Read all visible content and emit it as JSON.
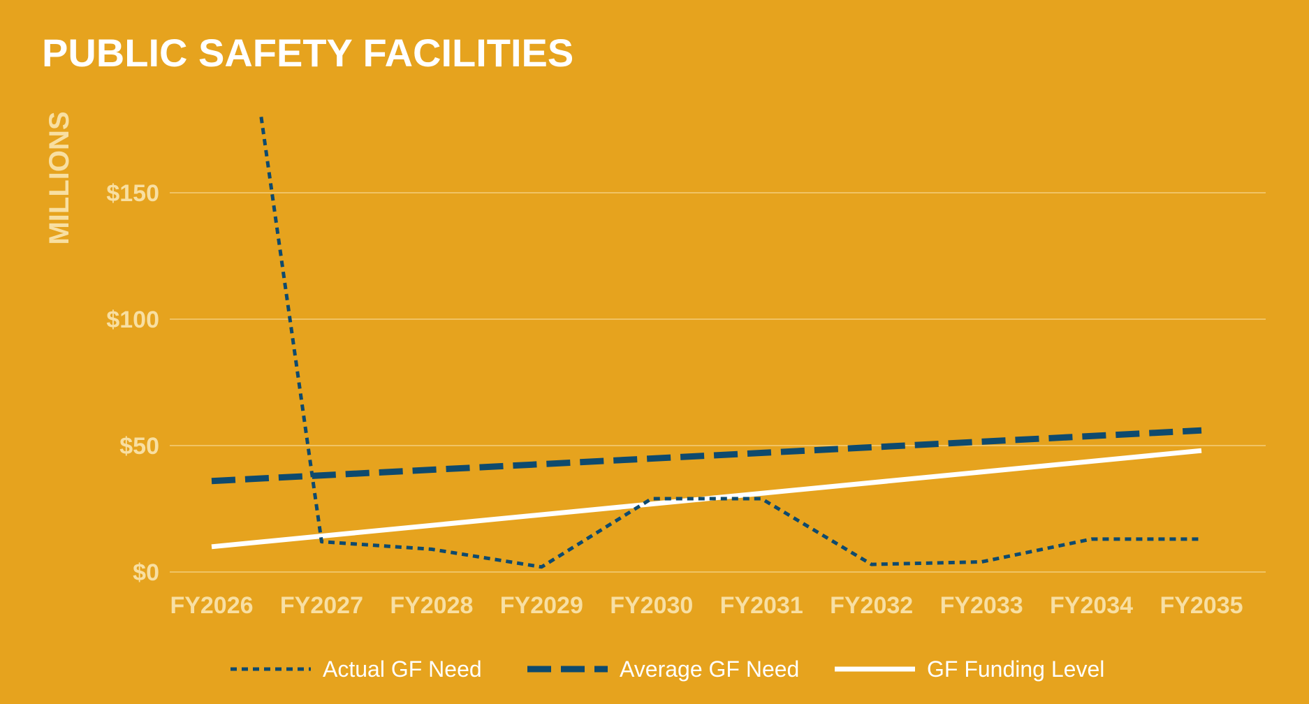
{
  "chart_data": {
    "type": "line",
    "title": "PUBLIC SAFETY FACILITIES",
    "ylabel": "MILLIONS",
    "xlabel": "",
    "categories": [
      "FY2026",
      "FY2027",
      "FY2028",
      "FY2029",
      "FY2030",
      "FY2031",
      "FY2032",
      "FY2033",
      "FY2034",
      "FY2035"
    ],
    "ylim": [
      0,
      180
    ],
    "yticks": [
      0,
      50,
      100,
      150
    ],
    "ytick_labels": [
      "$0",
      "$50",
      "$100",
      "$150"
    ],
    "grid": true,
    "legend_position": "bottom",
    "series": [
      {
        "name": "Actual GF Need",
        "style": "dotted",
        "color": "#0E4A6E",
        "points": [
          {
            "x": 0.45,
            "y": 180
          },
          {
            "x": 1,
            "y": 12
          },
          {
            "x": 2,
            "y": 9
          },
          {
            "x": 3,
            "y": 2
          },
          {
            "x": 4,
            "y": 29
          },
          {
            "x": 5,
            "y": 29
          },
          {
            "x": 6,
            "y": 3
          },
          {
            "x": 7,
            "y": 4
          },
          {
            "x": 8,
            "y": 13
          },
          {
            "x": 9,
            "y": 13
          }
        ]
      },
      {
        "name": "Average GF Need",
        "style": "dashed",
        "color": "#0E4A6E",
        "points": [
          {
            "x": 0,
            "y": 36
          },
          {
            "x": 9,
            "y": 56
          }
        ]
      },
      {
        "name": "GF Funding Level",
        "style": "solid",
        "color": "#FFFFFF",
        "points": [
          {
            "x": 0,
            "y": 10
          },
          {
            "x": 9,
            "y": 48
          }
        ]
      }
    ]
  }
}
